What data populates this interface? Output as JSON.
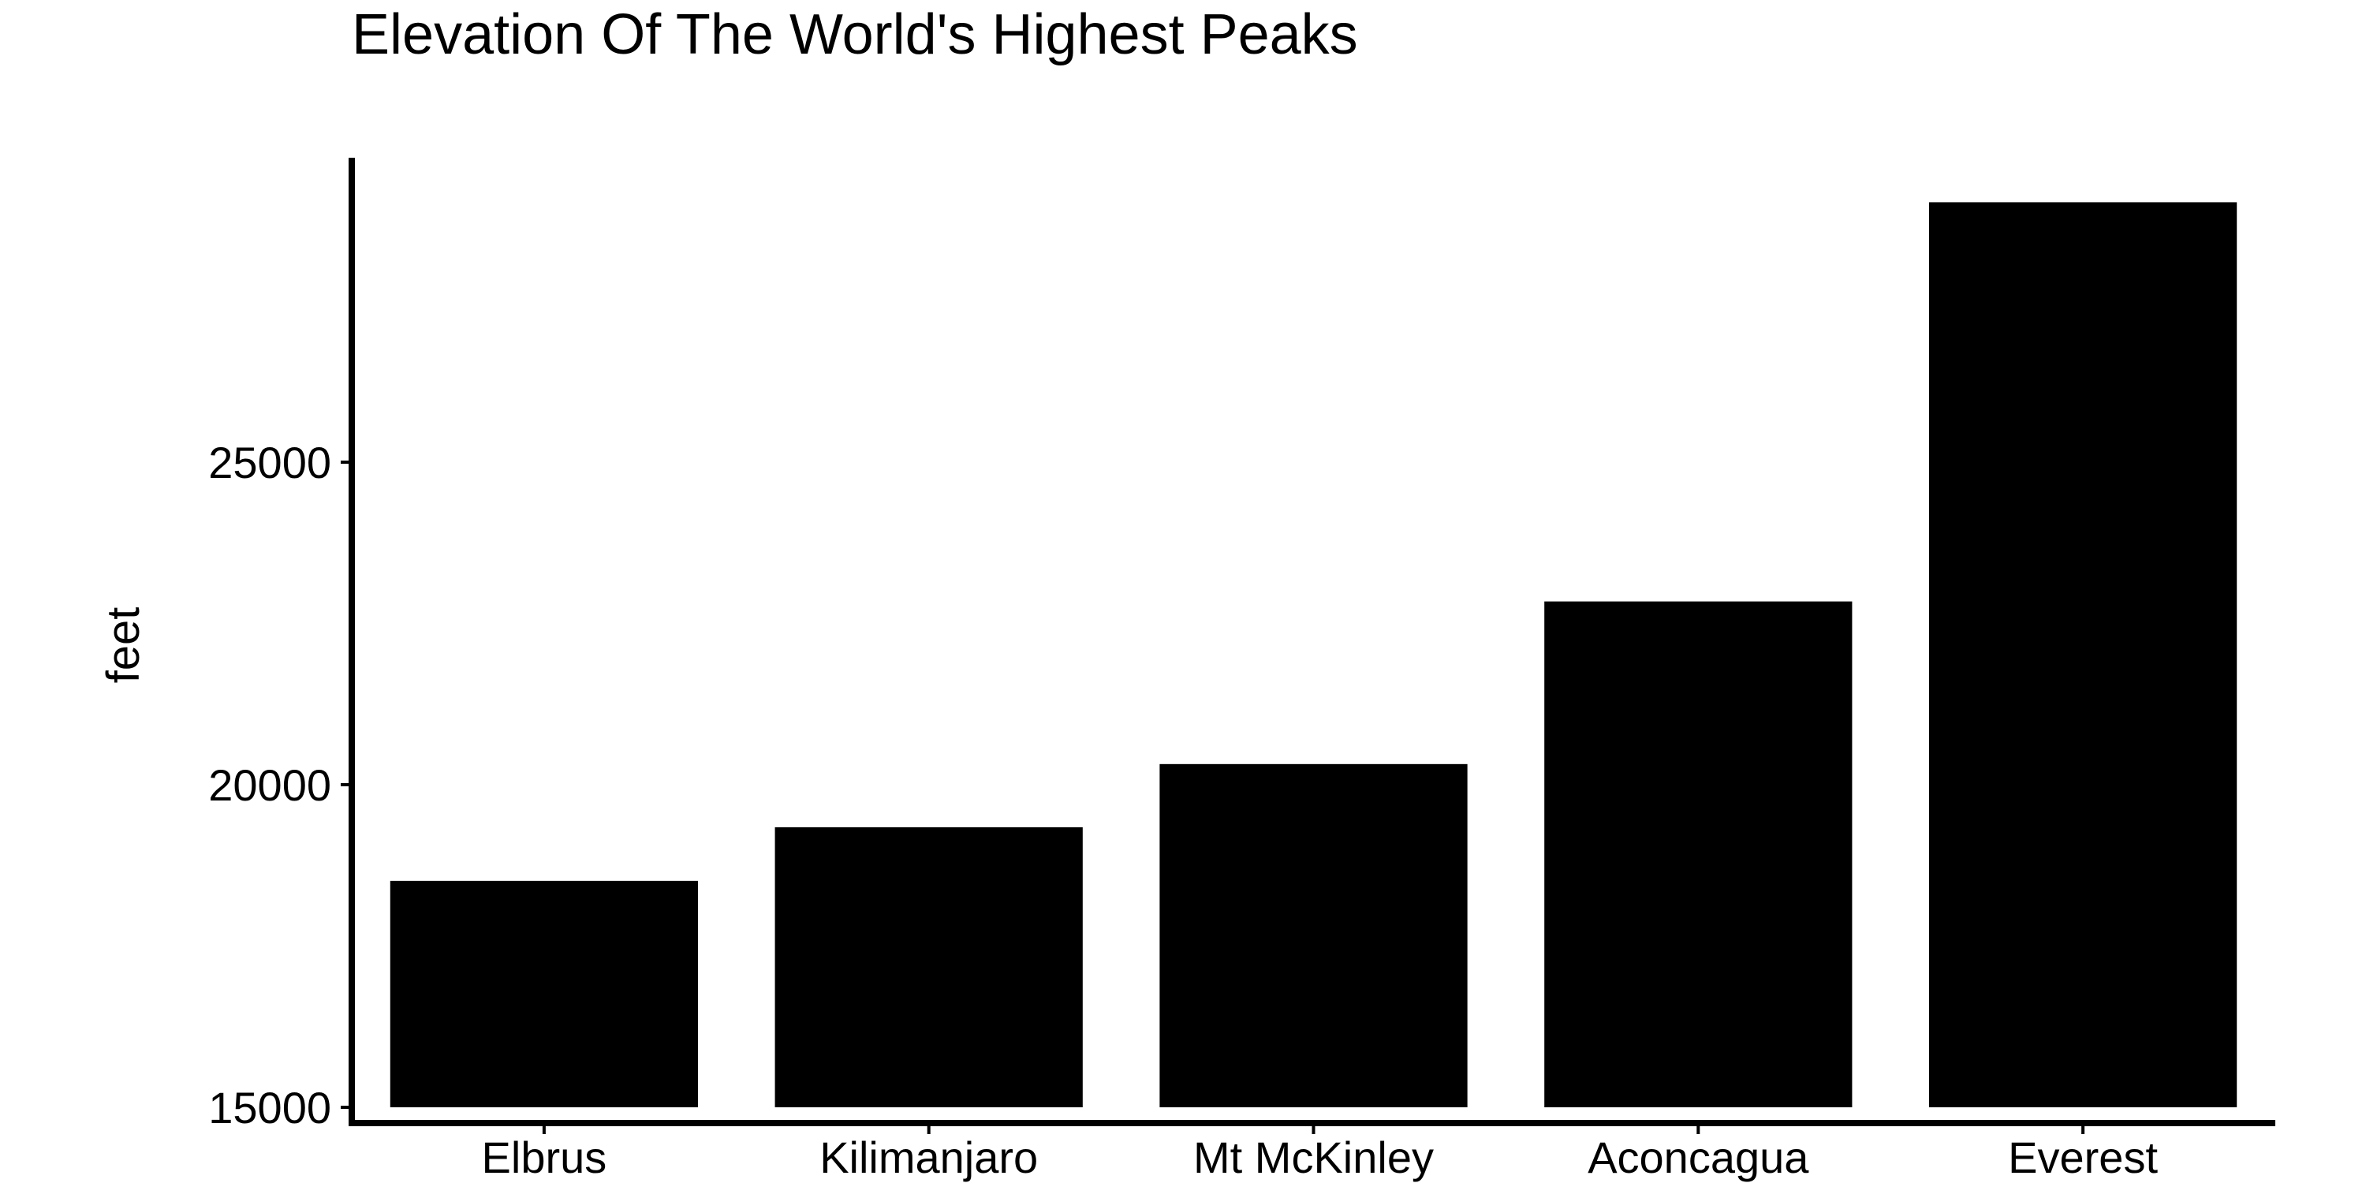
{
  "chart_data": {
    "type": "bar",
    "title": "Elevation Of The World's Highest Peaks",
    "xlabel": "",
    "ylabel": "feet",
    "categories": [
      "Elbrus",
      "Kilimanjaro",
      "Mt McKinley",
      "Aconcagua",
      "Everest"
    ],
    "values": [
      18510,
      19341,
      20320,
      22841,
      29029
    ],
    "ylim": [
      15000,
      29700
    ],
    "yticks": [
      15000,
      20000,
      25000
    ],
    "ytick_labels": [
      "15000",
      "20000",
      "25000"
    ],
    "bar_color": "#000000",
    "grid": false,
    "legend": "none"
  }
}
